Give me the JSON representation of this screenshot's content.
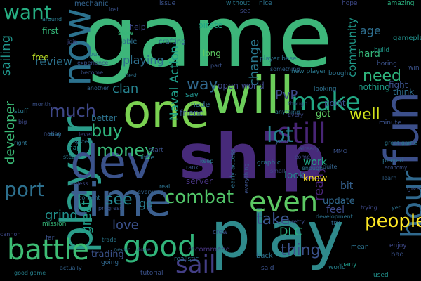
{
  "cloud": {
    "background": "#000000",
    "words": [
      {
        "text": "game",
        "color": "#3db67a"
      },
      {
        "text": "ship",
        "color": "#472a7a"
      },
      {
        "text": "player",
        "color": "#2a9d8a"
      },
      {
        "text": "dev",
        "color": "#3b528b"
      },
      {
        "text": "time",
        "color": "#3b5f8e"
      },
      {
        "text": "play",
        "color": "#2f8a8c"
      },
      {
        "text": "one",
        "color": "#7ad151"
      },
      {
        "text": "will",
        "color": "#6ccd5a"
      },
      {
        "text": "fun",
        "color": "#3c4f8a"
      },
      {
        "text": "now",
        "color": "#2c728e"
      },
      {
        "text": "still",
        "color": "#482576"
      },
      {
        "text": "hour",
        "color": "#30698e"
      },
      {
        "text": "battle",
        "color": "#3dbc74"
      },
      {
        "text": "good",
        "color": "#31b57b"
      },
      {
        "text": "sail",
        "color": "#433e85"
      },
      {
        "text": "even",
        "color": "#5cc863"
      },
      {
        "text": "make",
        "color": "#22a884"
      },
      {
        "text": "lot",
        "color": "#26828e"
      },
      {
        "text": "combat",
        "color": "#52c569"
      },
      {
        "text": "people",
        "color": "#fde725"
      },
      {
        "text": "much",
        "color": "#3f4889"
      },
      {
        "text": "want",
        "color": "#26ad81"
      },
      {
        "text": "port",
        "color": "#2d708e"
      },
      {
        "text": "money",
        "color": "#38b977"
      },
      {
        "text": "buy",
        "color": "#2fb47c"
      },
      {
        "text": "take",
        "color": "#3a548c"
      },
      {
        "text": "thing",
        "color": "#3b528b"
      },
      {
        "text": "see",
        "color": "#24868e"
      },
      {
        "text": "way",
        "color": "#31688e"
      },
      {
        "text": "need",
        "color": "#2fb47c"
      },
      {
        "text": "well",
        "color": "#d2e21b"
      },
      {
        "text": "change",
        "color": "#2a788e"
      },
      {
        "text": "really",
        "color": "#482475"
      },
      {
        "text": "Naval Action",
        "color": "#1f9e89"
      },
      {
        "text": "PvP",
        "color": "#3e4a89"
      },
      {
        "text": "review",
        "color": "#2c728e"
      },
      {
        "text": "developer",
        "color": "#3aba76"
      },
      {
        "text": "sailing",
        "color": "#1f958b"
      },
      {
        "text": "grind",
        "color": "#21918c"
      },
      {
        "text": "go",
        "color": "#287d8e"
      },
      {
        "text": "clan",
        "color": "#26818e"
      },
      {
        "text": "playing",
        "color": "#2e6f8e"
      },
      {
        "text": "love",
        "color": "#3b518b"
      },
      {
        "text": "great",
        "color": "#1f9f88"
      },
      {
        "text": "age",
        "color": "#2e6e8e"
      },
      {
        "text": "DLC",
        "color": "#2ab07f"
      },
      {
        "text": "community",
        "color": "#1f9a8a"
      },
      {
        "text": "hard",
        "color": "#35b779"
      },
      {
        "text": "free",
        "color": "#bddf26"
      },
      {
        "text": "first",
        "color": "#35b779"
      },
      {
        "text": "server",
        "color": "#46337e"
      },
      {
        "text": "trading",
        "color": "#3b528b"
      },
      {
        "text": "update",
        "color": "#31688e"
      },
      {
        "text": "feel",
        "color": "#3e4989"
      },
      {
        "text": "look",
        "color": "#26828e"
      },
      {
        "text": "work",
        "color": "#21a685"
      },
      {
        "text": "know",
        "color": "#fde725"
      },
      {
        "text": "bit",
        "color": "#35608d"
      },
      {
        "text": "got",
        "color": "#5ec962"
      },
      {
        "text": "point",
        "color": "#3b528b"
      },
      {
        "text": "open world",
        "color": "#3e4a89"
      },
      {
        "text": "nothing",
        "color": "#1fa088"
      },
      {
        "text": "fight",
        "color": "#3b528b"
      },
      {
        "text": "think",
        "color": "#2d708e"
      },
      {
        "text": "better",
        "color": "#2c728e"
      },
      {
        "text": "friend",
        "color": "#3b528b"
      },
      {
        "text": "made",
        "color": "#31688e"
      },
      {
        "text": "say",
        "color": "#21918c"
      },
      {
        "text": "long",
        "color": "#5ec962"
      },
      {
        "text": "pirate",
        "color": "#21a685"
      },
      {
        "text": "help",
        "color": "#3e4989"
      },
      {
        "text": "slow",
        "color": "#35b779"
      },
      {
        "text": "able",
        "color": "#2d708e"
      },
      {
        "text": "crafting",
        "color": "#31688e"
      },
      {
        "text": "mechanic",
        "color": "#33638d"
      },
      {
        "text": "issue",
        "color": "#3b528b"
      },
      {
        "text": "without",
        "color": "#2a788e"
      },
      {
        "text": "nice",
        "color": "#2c728e"
      },
      {
        "text": "sea",
        "color": "#3e4a89"
      },
      {
        "text": "hope",
        "color": "#3e4989"
      },
      {
        "text": "amazing",
        "color": "#2ab07f"
      },
      {
        "text": "build",
        "color": "#1f9a8a"
      },
      {
        "text": "boring",
        "color": "#3b528b"
      },
      {
        "text": "gameplay",
        "color": "#21918c"
      },
      {
        "text": "win",
        "color": "#3b528b"
      },
      {
        "text": "bought",
        "color": "#2c728e"
      },
      {
        "text": "looking",
        "color": "#2d708e"
      },
      {
        "text": "minute",
        "color": "#3b528b"
      },
      {
        "text": "year",
        "color": "#3b528b"
      },
      {
        "text": "map",
        "color": "#21918c"
      },
      {
        "text": "start",
        "color": "#3b528b"
      },
      {
        "text": "system",
        "color": "#2c728e"
      },
      {
        "text": "little",
        "color": "#2a788e"
      },
      {
        "text": "give",
        "color": "#3b528b"
      },
      {
        "text": "played",
        "color": "#2c728e"
      },
      {
        "text": "learn",
        "color": "#33638d"
      },
      {
        "text": "many",
        "color": "#1f9a8a"
      },
      {
        "text": "enjoy",
        "color": "#3e4989"
      },
      {
        "text": "bad",
        "color": "#3b528b"
      },
      {
        "text": "mean",
        "color": "#2c728e"
      },
      {
        "text": "used",
        "color": "#21918c"
      },
      {
        "text": "back",
        "color": "#2d708e"
      },
      {
        "text": "said",
        "color": "#3b528b"
      },
      {
        "text": "world",
        "color": "#26828e"
      },
      {
        "text": "recommend",
        "color": "#46337e"
      },
      {
        "text": "realistic",
        "color": "#2c728e"
      },
      {
        "text": "tutorial",
        "color": "#3b528b"
      },
      {
        "text": "going",
        "color": "#31688e"
      },
      {
        "text": "mission",
        "color": "#35b779"
      },
      {
        "text": "far",
        "color": "#3b528b"
      },
      {
        "text": "good game",
        "color": "#26828e"
      },
      {
        "text": "cannon",
        "color": "#3e4a89"
      },
      {
        "text": "actually",
        "color": "#33638d"
      },
      {
        "text": "never",
        "color": "#2c728e"
      },
      {
        "text": "done",
        "color": "#3b528b"
      },
      {
        "text": "trade",
        "color": "#2a788e"
      },
      {
        "text": "crew",
        "color": "#3b528b"
      },
      {
        "text": "try",
        "color": "#31688e"
      },
      {
        "text": "trying",
        "color": "#3e4989"
      },
      {
        "text": "yet",
        "color": "#2c728e"
      },
      {
        "text": "early access",
        "color": "#2d708e"
      },
      {
        "text": "everything",
        "color": "#3b528b"
      },
      {
        "text": "graphic",
        "color": "#2c728e"
      },
      {
        "text": "small",
        "color": "#3e4989"
      },
      {
        "text": "keep",
        "color": "#2a788e"
      },
      {
        "text": "rank",
        "color": "#3b528b"
      },
      {
        "text": "real",
        "color": "#2c728e"
      },
      {
        "text": "everyone",
        "color": "#33638d"
      },
      {
        "text": "progress",
        "color": "#3b528b"
      },
      {
        "text": "content",
        "color": "#2c728e"
      },
      {
        "text": "unless",
        "color": "#3e4989"
      },
      {
        "text": "steam",
        "color": "#2a788e"
      },
      {
        "text": "nation",
        "color": "#3b528b"
      },
      {
        "text": "right",
        "color": "#2c728e"
      },
      {
        "text": "big",
        "color": "#3e4989"
      },
      {
        "text": "stuff",
        "color": "#2a788e"
      },
      {
        "text": "month",
        "color": "#3b528b"
      },
      {
        "text": "may",
        "color": "#2c728e"
      },
      {
        "text": "level",
        "color": "#3e4989"
      },
      {
        "text": "another",
        "color": "#33638d"
      },
      {
        "text": "become",
        "color": "#3b528b"
      },
      {
        "text": "put",
        "color": "#2c728e"
      },
      {
        "text": "experience",
        "color": "#3b528b"
      },
      {
        "text": "join",
        "color": "#3e4989"
      },
      {
        "text": "around",
        "color": "#2a788e"
      },
      {
        "text": "lost",
        "color": "#3b528b"
      },
      {
        "text": "best",
        "color": "#2c728e"
      },
      {
        "text": "though",
        "color": "#3b528b"
      },
      {
        "text": "anything",
        "color": "#2c728e"
      },
      {
        "text": "every",
        "color": "#3e4989"
      },
      {
        "text": "something",
        "color": "#33638d"
      },
      {
        "text": "part",
        "color": "#3b528b"
      },
      {
        "text": "player base",
        "color": "#2c728e"
      },
      {
        "text": "new player",
        "color": "#2a788e"
      },
      {
        "text": "already",
        "color": "#3b528b"
      },
      {
        "text": "come",
        "color": "#3e4989"
      },
      {
        "text": "enough",
        "color": "#2c728e"
      },
      {
        "text": "quite",
        "color": "#33638d"
      },
      {
        "text": "great game",
        "color": "#2a788e"
      },
      {
        "text": "economy",
        "color": "#3b528b"
      },
      {
        "text": "development",
        "color": "#2c728e"
      },
      {
        "text": "pretty",
        "color": "#3e4989"
      },
      {
        "text": "MMO",
        "color": "#3b528b"
      }
    ]
  }
}
